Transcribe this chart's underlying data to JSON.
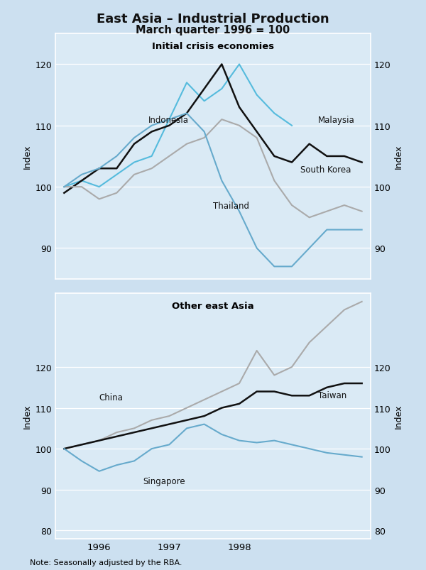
{
  "title": "East Asia – Industrial Production",
  "subtitle": "March quarter 1996 = 100",
  "bg_color": "#cce0f0",
  "panel_bg": "#daeaf5",
  "note": "Note: Seasonally adjusted by the RBA.",
  "panel1_title": "Initial crisis economies",
  "panel2_title": "Other east Asia",
  "color_black": "#111111",
  "color_blue_light": "#55bbdd",
  "color_blue_mid": "#66aacc",
  "color_grey": "#aaaaaa",
  "indonesia_x": [
    0,
    1,
    2,
    3,
    4,
    5,
    6,
    7,
    8,
    9,
    10,
    11,
    12,
    13
  ],
  "indonesia_y": [
    100,
    101,
    100,
    102,
    104,
    105,
    111,
    117,
    114,
    116,
    120,
    115,
    112,
    110
  ],
  "malaysia_x": [
    0,
    1,
    2,
    3,
    4,
    5,
    6,
    7,
    8,
    9,
    10,
    11,
    12,
    13,
    14,
    15,
    16,
    17
  ],
  "malaysia_y": [
    99,
    101,
    103,
    103,
    107,
    109,
    110,
    112,
    116,
    120,
    113,
    109,
    105,
    104,
    107,
    105,
    105,
    104
  ],
  "south_korea_x": [
    0,
    1,
    2,
    3,
    4,
    5,
    6,
    7,
    8,
    9,
    10,
    11,
    12,
    13,
    14,
    15,
    16,
    17
  ],
  "south_korea_y": [
    100,
    100,
    98,
    99,
    102,
    103,
    105,
    107,
    108,
    111,
    110,
    108,
    101,
    97,
    95,
    96,
    97,
    96
  ],
  "thailand_x": [
    0,
    1,
    2,
    3,
    4,
    5,
    6,
    7,
    8,
    9,
    10,
    11,
    12,
    13,
    14,
    15,
    16,
    17
  ],
  "thailand_y": [
    100,
    102,
    103,
    105,
    108,
    110,
    111,
    112,
    109,
    101,
    96,
    90,
    87,
    87,
    90,
    93,
    93,
    93
  ],
  "china_x": [
    0,
    1,
    2,
    3,
    4,
    5,
    6,
    7,
    8,
    9,
    10,
    11,
    12,
    13,
    14,
    15,
    16,
    17
  ],
  "china_y": [
    100,
    101,
    102,
    104,
    105,
    107,
    108,
    110,
    112,
    114,
    116,
    124,
    118,
    120,
    126,
    130,
    134,
    136
  ],
  "taiwan_x": [
    0,
    1,
    2,
    3,
    4,
    5,
    6,
    7,
    8,
    9,
    10,
    11,
    12,
    13,
    14,
    15,
    16,
    17
  ],
  "taiwan_y": [
    100,
    101,
    102,
    103,
    104,
    105,
    106,
    107,
    108,
    110,
    111,
    114,
    114,
    113,
    113,
    115,
    116,
    116
  ],
  "singapore_x": [
    0,
    1,
    2,
    3,
    4,
    5,
    6,
    7,
    8,
    9,
    10,
    11,
    12,
    13,
    14,
    15,
    16,
    17
  ],
  "singapore_y": [
    100,
    97,
    94.5,
    96,
    97,
    100,
    101,
    105,
    106,
    103.5,
    102,
    101.5,
    102,
    101,
    100,
    99,
    98.5,
    98
  ],
  "xlim": [
    -0.5,
    17.5
  ],
  "x_tick_pos": [
    2,
    6,
    10
  ],
  "x_tick_labels": [
    "1996",
    "1997",
    "1998"
  ],
  "ylim1": [
    85,
    125
  ],
  "yticks1": [
    90,
    100,
    110,
    120
  ],
  "ylim2": [
    78,
    138
  ],
  "yticks2": [
    80,
    90,
    100,
    110,
    120
  ]
}
